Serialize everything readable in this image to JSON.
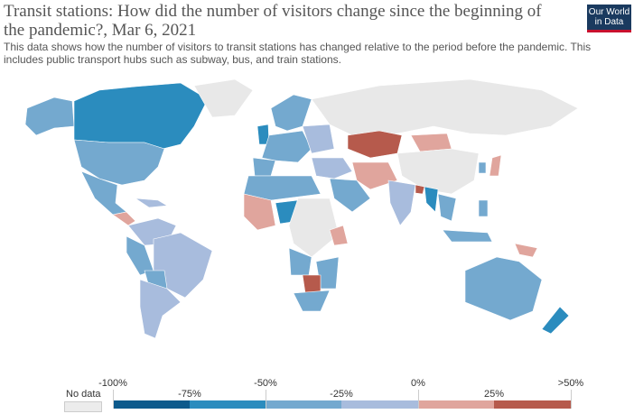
{
  "header": {
    "title": "Transit stations: How did the number of visitors change since the beginning of the pandemic?, Mar 6, 2021",
    "subtitle": "This data shows how the number of visitors to transit stations has changed relative to the period before the pandemic. This includes public transport hubs such as subway, bus, and train stations.",
    "logo_line1": "Our World",
    "logo_line2": "in Data"
  },
  "legend": {
    "no_data_label": "No data",
    "bins": [
      {
        "from": "-100%",
        "to": "-75%",
        "color": "#0d5a8c"
      },
      {
        "from": "-75%",
        "to": "-50%",
        "color": "#2b8cbe"
      },
      {
        "from": "-50%",
        "to": "-25%",
        "color": "#74a9cf"
      },
      {
        "from": "-25%",
        "to": "0%",
        "color": "#a8bcdd"
      },
      {
        "from": "0%",
        "to": "25%",
        "color": "#e0a59d"
      },
      {
        "from": "25%",
        "to": ">50%",
        "color": "#b65a4c"
      }
    ],
    "ticks": [
      "-100%",
      "-75%",
      "-50%",
      "-25%",
      "0%",
      "25%",
      ">50%"
    ]
  },
  "colors": {
    "no_data": "#e8e8e8"
  }
}
